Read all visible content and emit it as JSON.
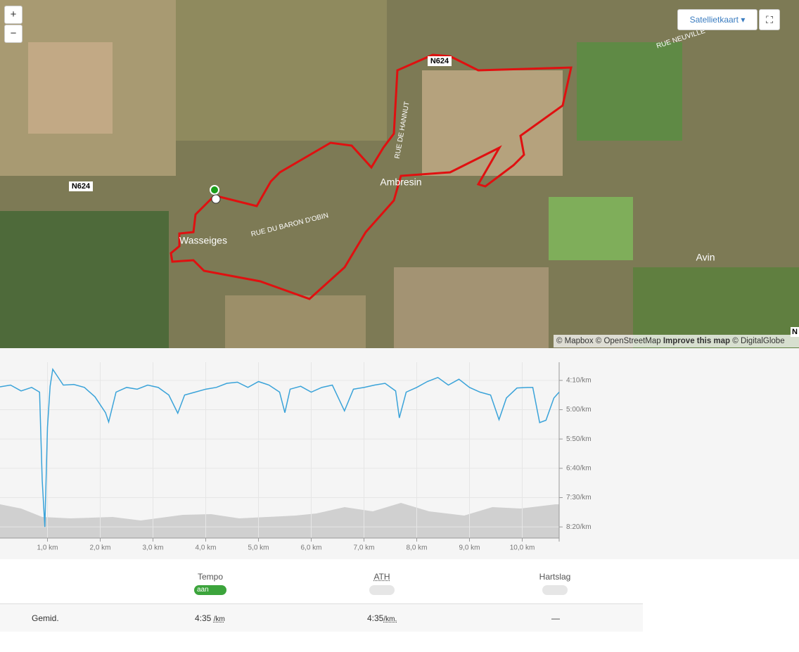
{
  "map": {
    "zoom_in": "+",
    "zoom_out": "−",
    "layer_button": "Satellietkaart",
    "labels": {
      "road_n624_east": "N624",
      "road_n624_west": "N624",
      "rue_de_hannut": "RUE DE HANNUT",
      "rue_neuville": "RUE NEUVILLE",
      "rue_du_baron": "RUE DU BARON D'OBIN",
      "ambresin": "Ambresin",
      "wasseiges": "Wasseiges",
      "avin": "Avin",
      "edge": "N"
    },
    "attribution": {
      "mapbox": "© Mapbox",
      "osm": "© OpenStreetMap",
      "improve": "Improve this map",
      "digitalglobe": "© DigitalGlobe"
    }
  },
  "chart_data": {
    "type": "line",
    "color": "#3aa3d9",
    "x": [
      0.1,
      0.3,
      0.5,
      0.7,
      0.85,
      0.9,
      0.95,
      1.0,
      1.05,
      1.1,
      1.3,
      1.5,
      1.7,
      1.9,
      2.1,
      2.16,
      2.3,
      2.5,
      2.7,
      2.9,
      3.1,
      3.3,
      3.47,
      3.6,
      3.8,
      4.0,
      4.2,
      4.4,
      4.6,
      4.8,
      5.0,
      5.2,
      5.4,
      5.5,
      5.6,
      5.8,
      6.0,
      6.2,
      6.4,
      6.63,
      6.8,
      7.0,
      7.2,
      7.4,
      7.6,
      7.67,
      7.8,
      8.0,
      8.2,
      8.4,
      8.6,
      8.8,
      9.0,
      9.2,
      9.4,
      9.56,
      9.7,
      9.9,
      10.1,
      10.2,
      10.33,
      10.45,
      10.6,
      10.7
    ],
    "values": [
      261,
      258,
      268,
      262,
      270,
      420,
      500,
      330,
      260,
      231,
      258,
      257,
      262,
      278,
      305,
      321,
      270,
      262,
      265,
      258,
      262,
      275,
      306,
      275,
      270,
      265,
      262,
      255,
      253,
      262,
      252,
      258,
      270,
      305,
      265,
      260,
      270,
      262,
      258,
      302,
      265,
      262,
      258,
      255,
      268,
      314,
      270,
      262,
      252,
      245,
      258,
      248,
      262,
      270,
      275,
      317,
      280,
      263,
      262,
      262,
      322,
      318,
      280,
      270
    ],
    "xlim": [
      0.1,
      10.7
    ],
    "ylim": [
      219,
      519
    ],
    "inverted": true,
    "grid": true,
    "xticks": [
      {
        "value": 1,
        "label": "1,0 km"
      },
      {
        "value": 2,
        "label": "2,0 km"
      },
      {
        "value": 3,
        "label": "3,0 km"
      },
      {
        "value": 4,
        "label": "4,0 km"
      },
      {
        "value": 5,
        "label": "5,0 km"
      },
      {
        "value": 6,
        "label": "6,0 km"
      },
      {
        "value": 7,
        "label": "7,0 km"
      },
      {
        "value": 8,
        "label": "8,0 km"
      },
      {
        "value": 9,
        "label": "9,0 km"
      },
      {
        "value": 10,
        "label": "10,0 km"
      }
    ],
    "yticks": [
      {
        "value": 250,
        "label": "4:10/km"
      },
      {
        "value": 300,
        "label": "5:00/km"
      },
      {
        "value": 350,
        "label": "5:50/km"
      },
      {
        "value": 400,
        "label": "6:40/km"
      },
      {
        "value": 450,
        "label": "7:30/km"
      },
      {
        "value": 500,
        "label": "8:20/km"
      }
    ]
  },
  "toggles": [
    {
      "label": "Tempo",
      "state": "aan"
    },
    {
      "label": "ATH"
    },
    {
      "label": "Hartslag"
    }
  ],
  "averages": {
    "label": "Gemid.",
    "tempo": "4:35",
    "tempo_unit": "/km",
    "ath": "4:35",
    "ath_unit": "/km.",
    "hartslag": "—"
  }
}
